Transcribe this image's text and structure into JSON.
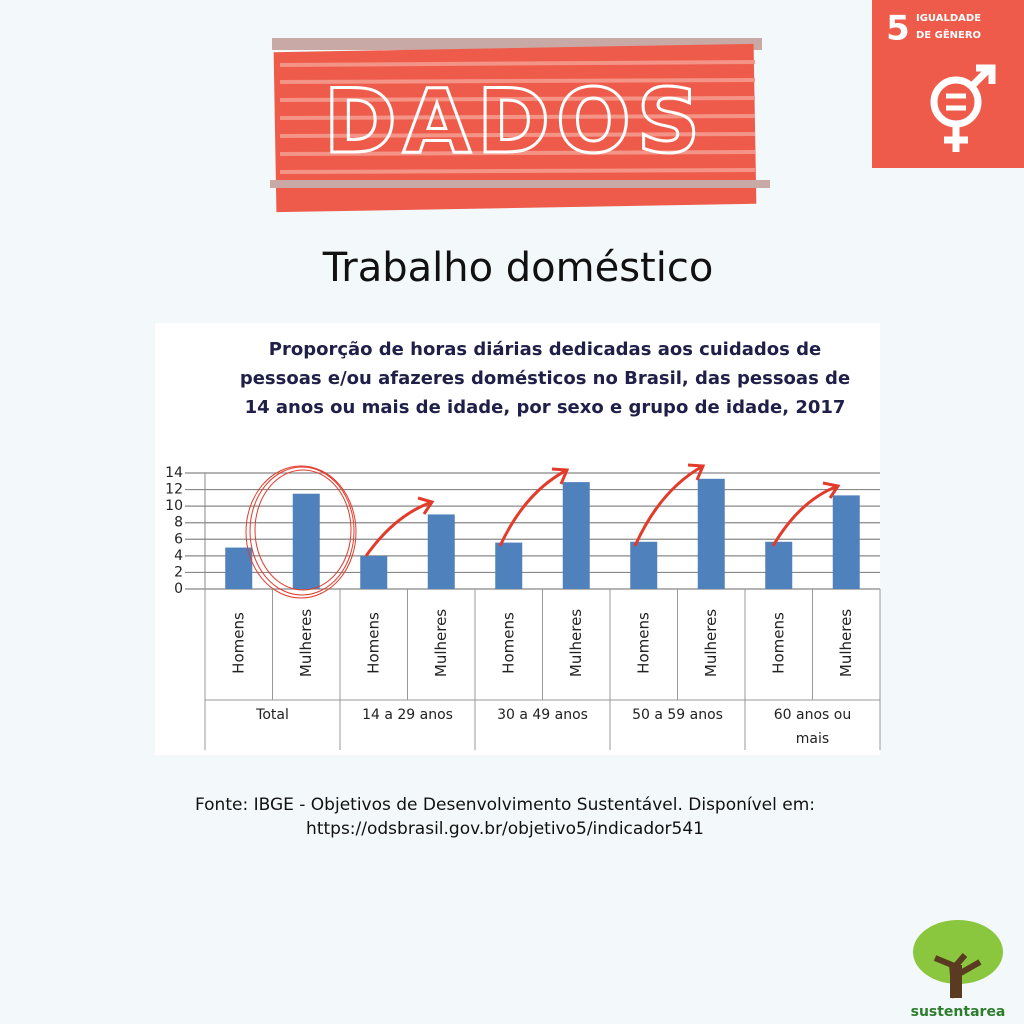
{
  "header": {
    "title": "DADOS",
    "subtitle": "Trabalho doméstico"
  },
  "badge": {
    "number": "5",
    "line1": "IGUALDADE",
    "line2": "DE GÊNERO"
  },
  "chart_data": {
    "type": "bar",
    "title": "Proporção de horas diárias dedicadas aos cuidados de pessoas e/ou afazeres domésticos no Brasil, das pessoas de 14 anos ou mais de idade, por sexo e grupo de idade, 2017",
    "categories": [
      "Homens",
      "Mulheres",
      "Homens",
      "Mulheres",
      "Homens",
      "Mulheres",
      "Homens",
      "Mulheres",
      "Homens",
      "Mulheres"
    ],
    "groups": [
      "Total",
      "14 a 29 anos",
      "30 a 49 anos",
      "50 a 59 anos",
      "60 anos ou mais"
    ],
    "values": [
      5,
      11.5,
      4,
      9,
      5.6,
      12.9,
      5.7,
      13.3,
      5.7,
      11.3
    ],
    "color": "#4f81bd",
    "ylim": [
      0,
      14
    ],
    "yticks": [
      0,
      2,
      4,
      6,
      8,
      10,
      12,
      14
    ],
    "grid": true
  },
  "source": {
    "line1": "Fonte:  IBGE - Objetivos de Desenvolvimento Sustentável. Disponível em:",
    "line2": "https://odsbrasil.gov.br/objetivo5/indicador541"
  },
  "logo": {
    "name": "sustentarea"
  }
}
